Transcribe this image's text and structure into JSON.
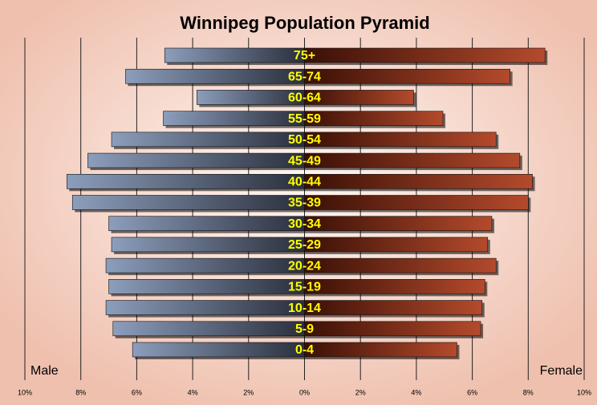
{
  "chart_data": {
    "type": "pyramid",
    "title": "Winnipeg Population Pyramid",
    "categories": [
      "75+",
      "65-74",
      "60-64",
      "55-59",
      "50-54",
      "45-49",
      "40-44",
      "35-39",
      "30-34",
      "25-29",
      "20-24",
      "15-19",
      "10-14",
      "5-9",
      "0-4"
    ],
    "series": [
      {
        "name": "Male",
        "color": "#8a9cba",
        "values": [
          -5.0,
          -6.4,
          -3.85,
          -5.05,
          -6.9,
          -7.75,
          -8.5,
          -8.3,
          -7.0,
          -6.9,
          -7.1,
          -7.0,
          -7.1,
          -6.85,
          -6.15
        ]
      },
      {
        "name": "Female",
        "color": "#b0442a",
        "values": [
          8.6,
          7.35,
          3.9,
          4.95,
          6.85,
          7.7,
          8.15,
          8.0,
          6.7,
          6.55,
          6.85,
          6.45,
          6.35,
          6.3,
          5.45
        ]
      }
    ],
    "xlim": [
      -10,
      10
    ],
    "xticks": [
      {
        "value": -10,
        "label": "10%"
      },
      {
        "value": -8,
        "label": "8%"
      },
      {
        "value": -6,
        "label": "6%"
      },
      {
        "value": -4,
        "label": "4%"
      },
      {
        "value": -2,
        "label": "2%"
      },
      {
        "value": 0,
        "label": "0%"
      },
      {
        "value": 2,
        "label": "2%"
      },
      {
        "value": 4,
        "label": "4%"
      },
      {
        "value": 6,
        "label": "6%"
      },
      {
        "value": 8,
        "label": "8%"
      },
      {
        "value": 10,
        "label": "10%"
      }
    ],
    "grid": true
  }
}
